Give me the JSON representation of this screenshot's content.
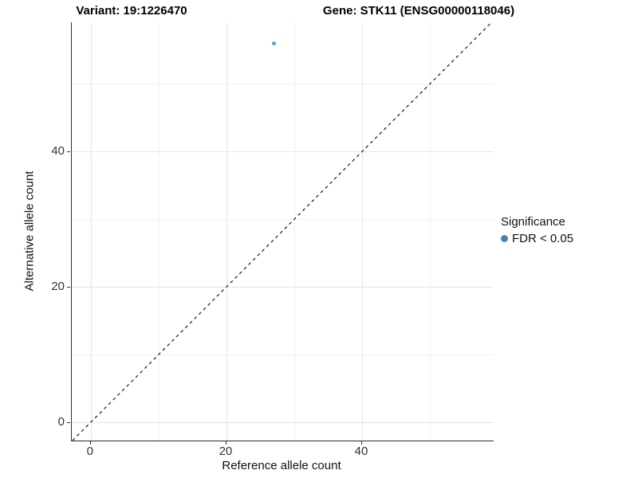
{
  "titles": {
    "variant": "Variant: 19:1226470",
    "gene": "Gene: STK11 (ENSG00000118046)"
  },
  "axes": {
    "x": {
      "label": "Reference allele count",
      "tick_labels": [
        "0",
        "20",
        "40"
      ]
    },
    "y": {
      "label": "Alternative allele count",
      "tick_labels": [
        "0",
        "20",
        "40"
      ]
    }
  },
  "legend": {
    "title": "Significance",
    "items": [
      {
        "label": "FDR < 0.05",
        "color": "#4682B4"
      }
    ]
  },
  "colors": {
    "point": "#4682B4",
    "reference_line": "#1a1a1a",
    "axis_line": "#2e2e2e",
    "grid_major": "#e4e4e4",
    "grid_minor": "#f1f1f1",
    "background": "#ffffff"
  },
  "chart_data": {
    "type": "scatter",
    "title": "Variant: 19:1226470 / Gene: STK11 (ENSG00000118046)",
    "xlabel": "Reference allele count",
    "ylabel": "Alternative allele count",
    "xlim": [
      -2.8,
      59.4
    ],
    "ylim": [
      -2.7,
      59.1
    ],
    "x_ticks": [
      0,
      20,
      40
    ],
    "y_ticks": [
      0,
      20,
      40
    ],
    "x_minor_ticks": [
      10,
      30,
      50
    ],
    "y_minor_ticks": [
      10,
      30,
      50
    ],
    "grid": true,
    "legend_position": "right",
    "series": [
      {
        "name": "FDR < 0.05",
        "color": "#4682B4",
        "points": [
          {
            "x": 27,
            "y": 56
          }
        ]
      }
    ],
    "reference_line": {
      "type": "identity",
      "style": "dashed",
      "color": "#1a1a1a"
    }
  }
}
